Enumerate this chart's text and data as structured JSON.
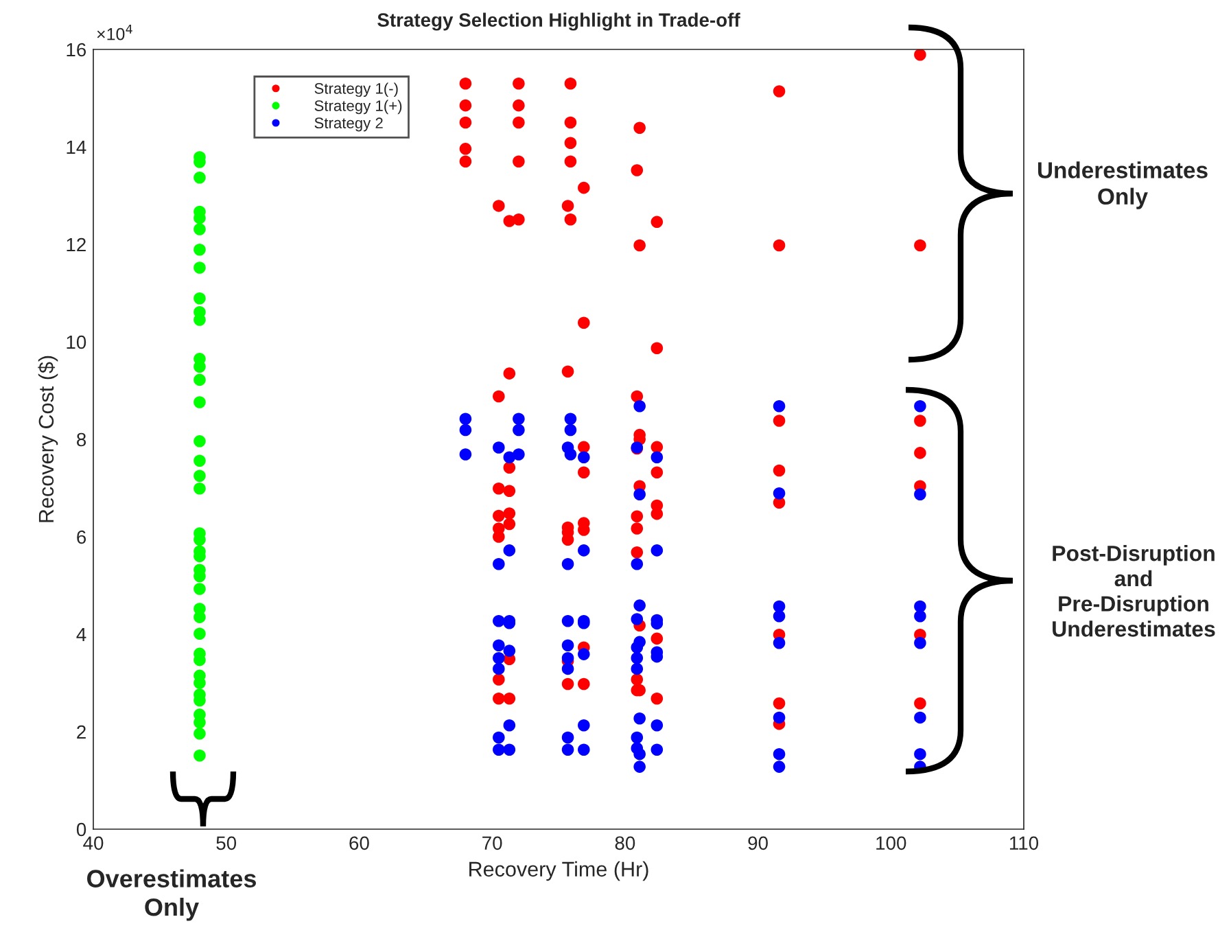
{
  "chart_data": {
    "type": "scatter",
    "title": "Strategy Selection Highlight in Trade-off",
    "xlabel": "Recovery Time (Hr)",
    "ylabel": "Recovery Cost ($)",
    "xlim": [
      40,
      110
    ],
    "xticks": [
      40,
      50,
      60,
      70,
      80,
      90,
      100,
      110
    ],
    "ylim": [
      0,
      16
    ],
    "yticks": [
      0,
      2,
      4,
      6,
      8,
      10,
      12,
      14,
      16
    ],
    "grid": false,
    "legend": "top left",
    "marker": "circle",
    "annotations": [
      "×10$^{4}$",
      "Underestimates\nOnly",
      "Post-Disruption\nand\nPre-Disruption\nUnderestimates",
      "Overestimates\nOnly"
    ],
    "series": [
      {
        "name": "Strategy 1(-)",
        "color": "#ff0000",
        "x": [
          68,
          68,
          68,
          68,
          68,
          72,
          72,
          72,
          72,
          72,
          71.3,
          71.3,
          71.3,
          71.3,
          71.3,
          71.3,
          71.3,
          71.3,
          70.5,
          70.5,
          70.5,
          70.5,
          70.5,
          70.5,
          70.5,
          70.5,
          75.9,
          75.9,
          75.9,
          75.9,
          75.9,
          75.7,
          75.7,
          75.7,
          75.7,
          75.7,
          75.7,
          75.7,
          76.9,
          76.9,
          76.9,
          76.9,
          76.9,
          76.9,
          76.9,
          76.9,
          81.1,
          81.1,
          81.1,
          81.1,
          81.1,
          81.1,
          81.1,
          80.9,
          80.9,
          80.9,
          80.9,
          80.9,
          80.9,
          80.9,
          80.9,
          82.4,
          82.4,
          82.4,
          82.4,
          82.4,
          82.4,
          82.4,
          82.4,
          91.6,
          91.6,
          91.6,
          91.6,
          91.6,
          91.6,
          91.6,
          91.6,
          102.2,
          102.2,
          102.2,
          102.2,
          102.2,
          102.2,
          102.2
        ],
        "values": [
          15.3,
          14.85,
          14.5,
          13.96,
          13.7,
          15.3,
          14.85,
          14.5,
          13.7,
          12.51,
          12.48,
          9.35,
          7.42,
          6.94,
          6.48,
          6.26,
          3.49,
          2.68,
          12.79,
          8.88,
          6.99,
          6.43,
          6.17,
          6.0,
          3.07,
          2.68,
          15.3,
          14.5,
          14.08,
          13.7,
          12.51,
          12.79,
          9.39,
          6.19,
          6.09,
          5.94,
          3.45,
          2.98,
          13.16,
          10.39,
          7.84,
          7.32,
          6.28,
          6.14,
          3.73,
          2.98,
          14.39,
          11.98,
          8.09,
          8.0,
          7.04,
          4.18,
          2.85,
          13.52,
          8.88,
          7.81,
          6.42,
          6.17,
          5.68,
          3.07,
          2.85,
          12.46,
          9.87,
          7.84,
          7.32,
          6.64,
          6.47,
          3.91,
          2.68,
          15.14,
          11.98,
          8.38,
          7.36,
          6.7,
          3.99,
          2.58,
          2.16,
          15.89,
          11.98,
          8.38,
          7.72,
          7.04,
          3.99,
          2.58
        ]
      },
      {
        "name": "Strategy 1(+)",
        "color": "#00ff00",
        "x": [
          48,
          48,
          48,
          48,
          48,
          48,
          48,
          48,
          48,
          48,
          48,
          48,
          48,
          48,
          48,
          48,
          48,
          48,
          48,
          48,
          48,
          48,
          48,
          48,
          48,
          48,
          48,
          48,
          48,
          48,
          48,
          48,
          48,
          48,
          48,
          48,
          48,
          48,
          48
        ],
        "values": [
          13.79,
          13.69,
          13.37,
          12.67,
          12.54,
          12.31,
          11.89,
          11.52,
          10.89,
          10.61,
          10.45,
          9.65,
          9.49,
          9.22,
          8.76,
          7.96,
          7.56,
          7.25,
          6.99,
          6.07,
          5.94,
          5.7,
          5.6,
          5.32,
          5.19,
          4.93,
          4.52,
          4.35,
          4.01,
          3.6,
          3.47,
          3.15,
          3.0,
          2.76,
          2.64,
          2.35,
          2.19,
          1.96,
          1.51
        ]
      },
      {
        "name": "Strategy 2",
        "color": "#0000ff",
        "x": [
          68,
          68,
          68,
          72,
          72,
          72,
          70.5,
          70.5,
          70.5,
          70.5,
          70.5,
          70.5,
          70.5,
          70.5,
          71.3,
          71.3,
          71.3,
          71.3,
          71.3,
          71.3,
          71.3,
          75.9,
          75.9,
          75.9,
          75.7,
          75.7,
          75.7,
          75.7,
          75.7,
          75.7,
          75.7,
          75.7,
          76.9,
          76.9,
          76.9,
          76.9,
          76.9,
          76.9,
          76.9,
          80.9,
          80.9,
          80.9,
          80.9,
          80.9,
          80.9,
          80.9,
          80.9,
          81.1,
          81.1,
          81.1,
          81.1,
          81.1,
          81.1,
          81.1,
          82.4,
          82.4,
          82.4,
          82.4,
          82.4,
          82.4,
          82.4,
          82.4,
          91.6,
          91.6,
          91.6,
          91.6,
          91.6,
          91.6,
          91.6,
          91.6,
          102.2,
          102.2,
          102.2,
          102.2,
          102.2,
          102.2,
          102.2,
          102.2
        ],
        "values": [
          8.42,
          8.19,
          7.69,
          8.42,
          8.19,
          7.69,
          7.83,
          5.44,
          4.27,
          3.77,
          3.51,
          3.29,
          1.88,
          1.63,
          7.63,
          5.72,
          4.27,
          4.23,
          3.66,
          2.13,
          1.63,
          8.42,
          8.19,
          7.69,
          7.83,
          5.44,
          4.27,
          3.77,
          3.51,
          3.29,
          1.88,
          1.63,
          7.63,
          5.72,
          4.27,
          4.23,
          3.59,
          2.13,
          1.63,
          7.83,
          5.44,
          4.31,
          3.73,
          3.51,
          3.29,
          1.88,
          1.66,
          8.68,
          6.87,
          4.59,
          3.84,
          2.27,
          1.54,
          1.28,
          7.63,
          5.72,
          4.29,
          4.22,
          3.63,
          3.54,
          2.13,
          1.63,
          8.68,
          6.89,
          4.57,
          4.37,
          3.82,
          2.29,
          1.54,
          1.28,
          8.68,
          6.87,
          4.57,
          4.37,
          3.82,
          2.29,
          1.54,
          1.28
        ]
      }
    ]
  }
}
